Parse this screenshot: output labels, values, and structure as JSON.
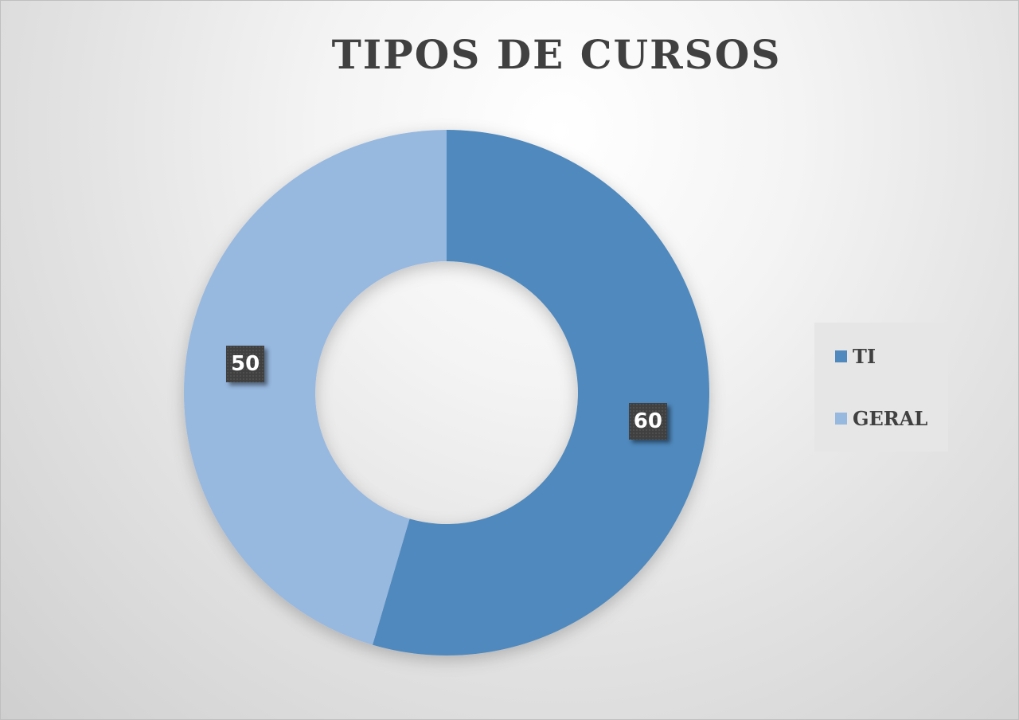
{
  "chart_data": {
    "type": "pie",
    "title": "TIPOS DE CURSOS",
    "categories": [
      "TI",
      "GERAL"
    ],
    "values": [
      60,
      50
    ],
    "colors": [
      "#4f89bd",
      "#97b8df"
    ],
    "legend_position": "right",
    "donut": true
  }
}
